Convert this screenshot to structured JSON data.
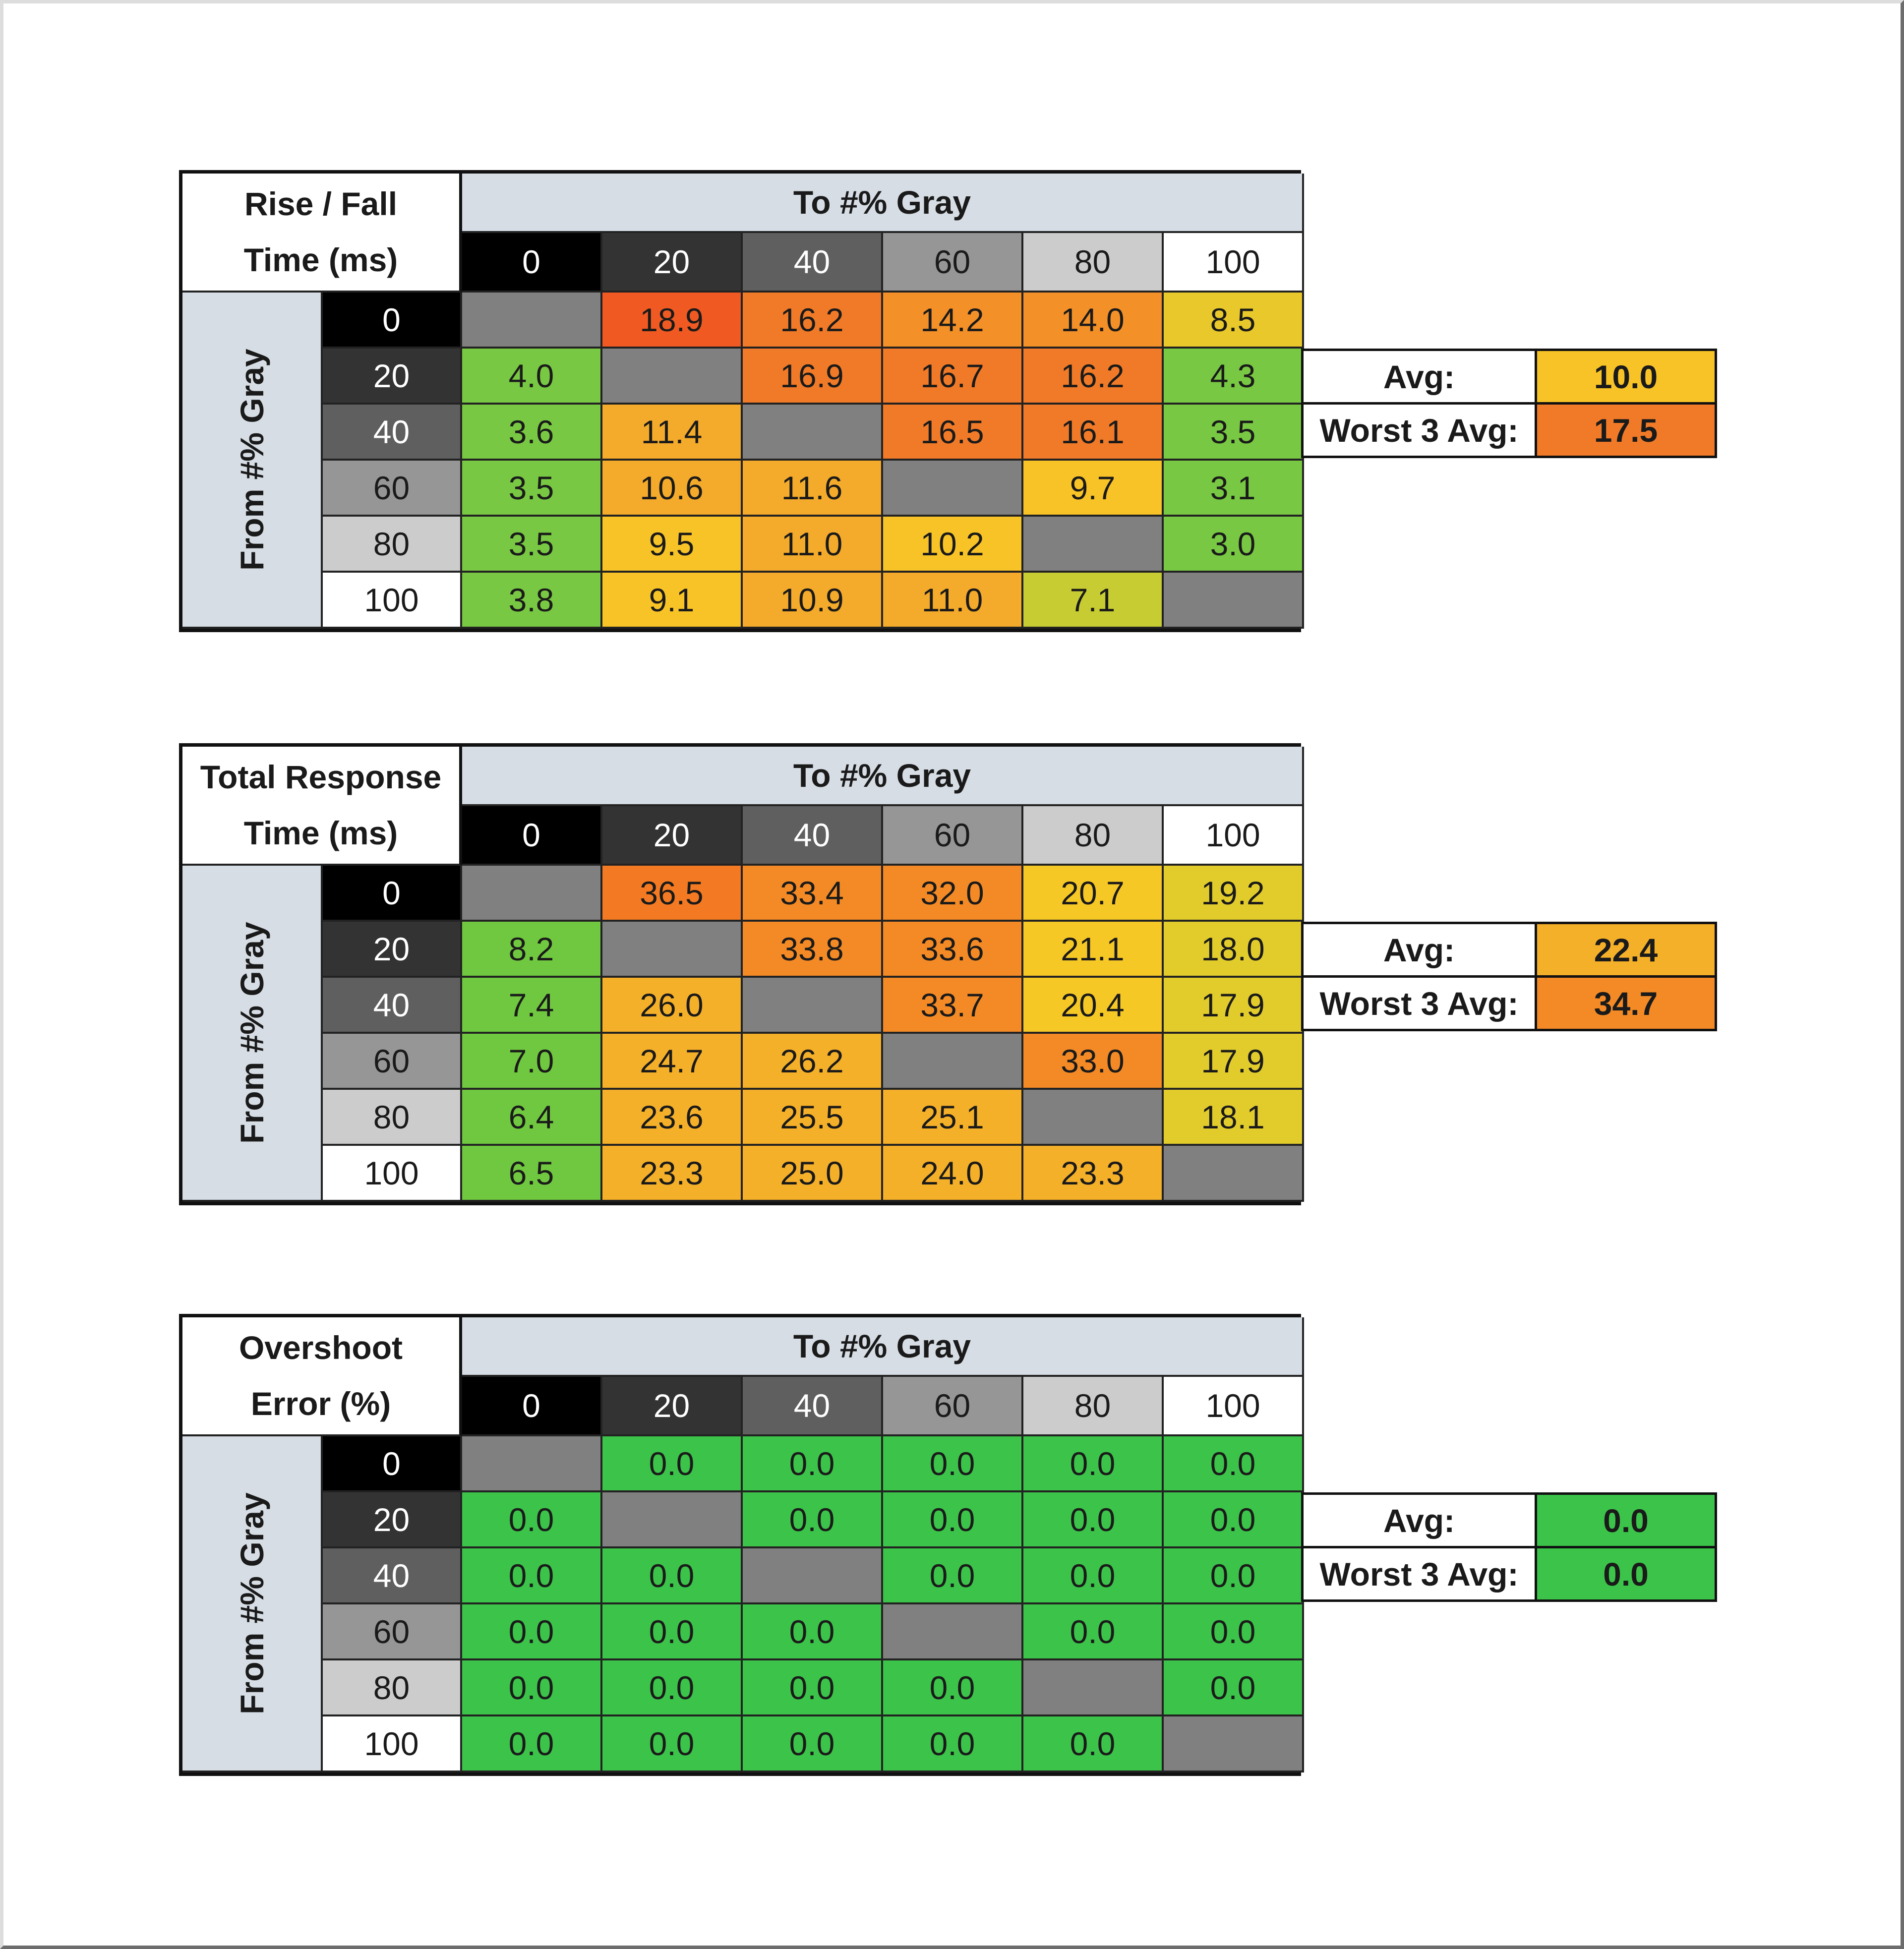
{
  "column_header": "To #% Gray",
  "row_header": "From #% Gray",
  "levels": [
    "0",
    "20",
    "40",
    "60",
    "80",
    "100"
  ],
  "level_colors": [
    "#000000",
    "#333333",
    "#5f5f5f",
    "#969696",
    "#cccccc",
    "#ffffff"
  ],
  "level_text_colors": [
    "#ffffff",
    "#ffffff",
    "#ffffff",
    "#1a1a1a",
    "#1a1a1a",
    "#1a1a1a"
  ],
  "diagonal_color": "#808080",
  "avg_label": "Avg:",
  "worst_label": "Worst 3 Avg:",
  "tables": [
    {
      "title_line1": "Rise / Fall",
      "title_line2": "Time (ms)",
      "values": [
        [
          null,
          "18.9",
          "16.2",
          "14.2",
          "14.0",
          "8.5"
        ],
        [
          "4.0",
          null,
          "16.9",
          "16.7",
          "16.2",
          "4.3"
        ],
        [
          "3.6",
          "11.4",
          null,
          "16.5",
          "16.1",
          "3.5"
        ],
        [
          "3.5",
          "10.6",
          "11.6",
          null,
          "9.7",
          "3.1"
        ],
        [
          "3.5",
          "9.5",
          "11.0",
          "10.2",
          null,
          "3.0"
        ],
        [
          "3.8",
          "9.1",
          "10.9",
          "11.0",
          "7.1",
          null
        ]
      ],
      "avg": "10.0",
      "worst3": "17.5",
      "color_scale": [
        [
          18,
          "#f05a22"
        ],
        [
          15,
          "#f07a28"
        ],
        [
          13,
          "#f39028"
        ],
        [
          10.5,
          "#f4aa2a"
        ],
        [
          9,
          "#f7c327"
        ],
        [
          8,
          "#e8c82a"
        ],
        [
          6,
          "#c6cc32"
        ],
        [
          0,
          "#78c843"
        ]
      ]
    },
    {
      "title_line1": "Total Response",
      "title_line2": "Time (ms)",
      "values": [
        [
          null,
          "36.5",
          "33.4",
          "32.0",
          "20.7",
          "19.2"
        ],
        [
          "8.2",
          null,
          "33.8",
          "33.6",
          "21.1",
          "18.0"
        ],
        [
          "7.4",
          "26.0",
          null,
          "33.7",
          "20.4",
          "17.9"
        ],
        [
          "7.0",
          "24.7",
          "26.2",
          null,
          "33.0",
          "17.9"
        ],
        [
          "6.4",
          "23.6",
          "25.5",
          "25.1",
          null,
          "18.1"
        ],
        [
          "6.5",
          "23.3",
          "25.0",
          "24.0",
          "23.3",
          null
        ]
      ],
      "avg": "22.4",
      "worst3": "34.7",
      "color_scale": [
        [
          35,
          "#f37a22"
        ],
        [
          30,
          "#f38a26"
        ],
        [
          22,
          "#f5b02a"
        ],
        [
          20,
          "#f6c826"
        ],
        [
          15,
          "#e2cc2c"
        ],
        [
          0,
          "#70c840"
        ]
      ]
    },
    {
      "title_line1": "Overshoot",
      "title_line2": "Error (%)",
      "values": [
        [
          null,
          "0.0",
          "0.0",
          "0.0",
          "0.0",
          "0.0"
        ],
        [
          "0.0",
          null,
          "0.0",
          "0.0",
          "0.0",
          "0.0"
        ],
        [
          "0.0",
          "0.0",
          null,
          "0.0",
          "0.0",
          "0.0"
        ],
        [
          "0.0",
          "0.0",
          "0.0",
          null,
          "0.0",
          "0.0"
        ],
        [
          "0.0",
          "0.0",
          "0.0",
          "0.0",
          null,
          "0.0"
        ],
        [
          "0.0",
          "0.0",
          "0.0",
          "0.0",
          "0.0",
          null
        ]
      ],
      "avg": "0.0",
      "worst3": "0.0",
      "color_scale": [
        [
          0,
          "#3cc34a"
        ]
      ]
    }
  ]
}
